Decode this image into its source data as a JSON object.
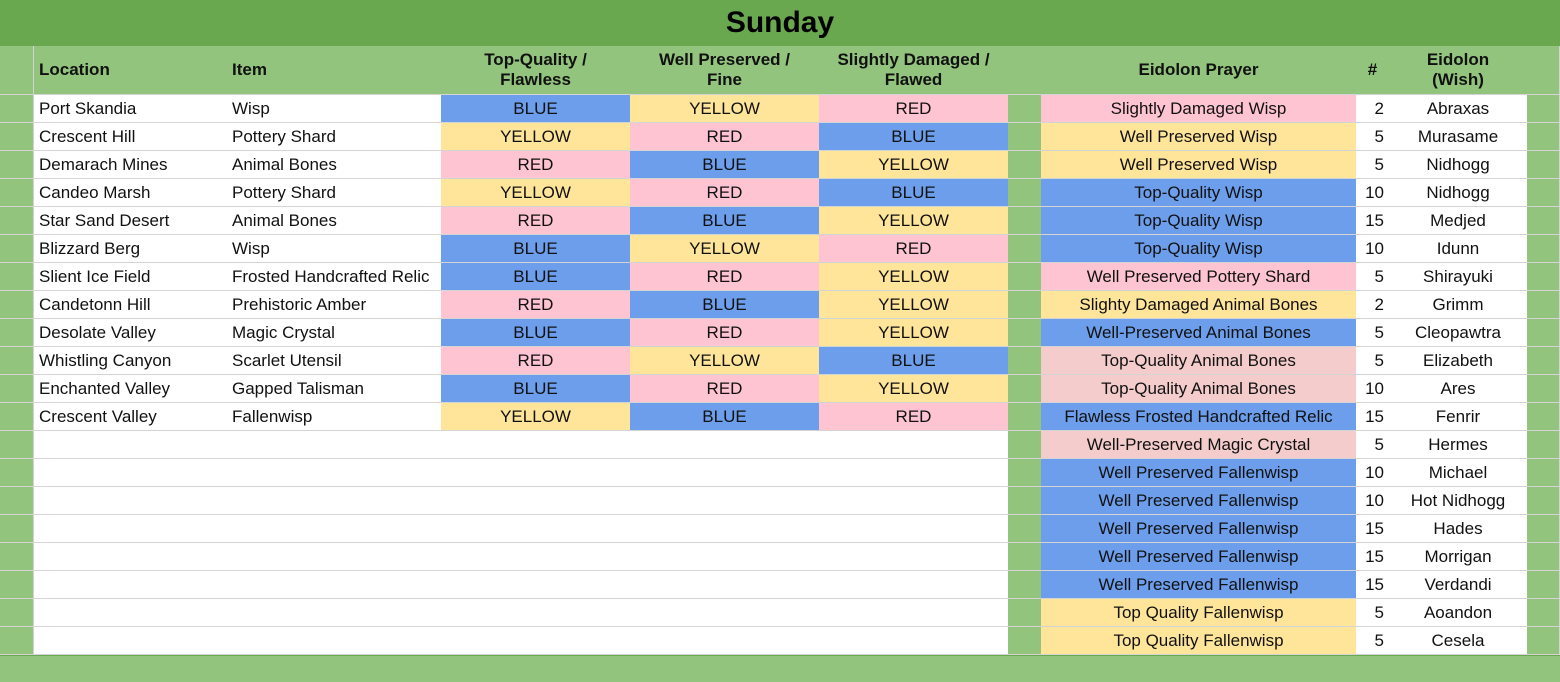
{
  "title": "Sunday",
  "colors": {
    "blue": "#6d9eeb",
    "yellow": "#ffe599",
    "red_pink": "#ffc4d1",
    "light_pink": "#f4cccc",
    "header_green": "#93c47d",
    "title_green": "#6aa84f"
  },
  "headers": {
    "location": "Location",
    "item": "Item",
    "top_quality": [
      "Top-Quality /",
      "Flawless"
    ],
    "well_preserved": [
      "Well Preserved /",
      "Fine"
    ],
    "slightly_damaged": [
      "Slightly Damaged /",
      "Flawed"
    ],
    "eidolon_prayer": "Eidolon Prayer",
    "count": "#",
    "eidolon_wish": [
      "Eidolon",
      "(Wish)"
    ]
  },
  "left_rows": [
    {
      "location": "Port Skandia",
      "item": "Wisp",
      "top": "BLUE",
      "well": "YELLOW",
      "slight": "RED"
    },
    {
      "location": "Crescent Hill",
      "item": "Pottery Shard",
      "top": "YELLOW",
      "well": "RED",
      "slight": "BLUE"
    },
    {
      "location": "Demarach Mines",
      "item": "Animal Bones",
      "top": "RED",
      "well": "BLUE",
      "slight": "YELLOW"
    },
    {
      "location": "Candeo Marsh",
      "item": "Pottery Shard",
      "top": "YELLOW",
      "well": "RED",
      "slight": "BLUE"
    },
    {
      "location": "Star Sand Desert",
      "item": "Animal Bones",
      "top": "RED",
      "well": "BLUE",
      "slight": "YELLOW"
    },
    {
      "location": "Blizzard Berg",
      "item": "Wisp",
      "top": "BLUE",
      "well": "YELLOW",
      "slight": "RED"
    },
    {
      "location": "Slient Ice Field",
      "item": "Frosted Handcrafted Relic",
      "top": "BLUE",
      "well": "RED",
      "slight": "YELLOW"
    },
    {
      "location": "Candetonn Hill",
      "item": "Prehistoric Amber",
      "top": "RED",
      "well": "BLUE",
      "slight": "YELLOW"
    },
    {
      "location": "Desolate Valley",
      "item": "Magic Crystal",
      "top": "BLUE",
      "well": "RED",
      "slight": "YELLOW"
    },
    {
      "location": "Whistling Canyon",
      "item": "Scarlet Utensil",
      "top": "RED",
      "well": "YELLOW",
      "slight": "BLUE"
    },
    {
      "location": "Enchanted Valley",
      "item": "Gapped Talisman",
      "top": "BLUE",
      "well": "RED",
      "slight": "YELLOW"
    },
    {
      "location": "Crescent Valley",
      "item": "Fallenwisp",
      "top": "YELLOW",
      "well": "BLUE",
      "slight": "RED"
    }
  ],
  "right_rows": [
    {
      "prayer": "Slightly Damaged Wisp",
      "color": "pink",
      "count": "2",
      "wish": "Abraxas"
    },
    {
      "prayer": "Well Preserved Wisp",
      "color": "yellow",
      "count": "5",
      "wish": "Murasame"
    },
    {
      "prayer": "Well Preserved Wisp",
      "color": "yellow",
      "count": "5",
      "wish": "Nidhogg"
    },
    {
      "prayer": "Top-Quality Wisp",
      "color": "blue",
      "count": "10",
      "wish": "Nidhogg"
    },
    {
      "prayer": "Top-Quality Wisp",
      "color": "blue",
      "count": "15",
      "wish": "Medjed"
    },
    {
      "prayer": "Top-Quality Wisp",
      "color": "blue",
      "count": "10",
      "wish": "Idunn"
    },
    {
      "prayer": "Well Preserved Pottery Shard",
      "color": "pink",
      "count": "5",
      "wish": "Shirayuki"
    },
    {
      "prayer": "Slighty Damaged Animal Bones",
      "color": "yellow",
      "count": "2",
      "wish": "Grimm"
    },
    {
      "prayer": "Well-Preserved Animal Bones",
      "color": "blue",
      "count": "5",
      "wish": "Cleopawtra"
    },
    {
      "prayer": "Top-Quality Animal Bones",
      "color": "lpink",
      "count": "5",
      "wish": "Elizabeth"
    },
    {
      "prayer": "Top-Quality Animal Bones",
      "color": "lpink",
      "count": "10",
      "wish": "Ares"
    },
    {
      "prayer": "Flawless Frosted Handcrafted Relic",
      "color": "blue",
      "count": "15",
      "wish": "Fenrir"
    },
    {
      "prayer": "Well-Preserved Magic Crystal",
      "color": "lpink",
      "count": "5",
      "wish": "Hermes"
    },
    {
      "prayer": "Well Preserved Fallenwisp",
      "color": "blue",
      "count": "10",
      "wish": "Michael"
    },
    {
      "prayer": "Well Preserved Fallenwisp",
      "color": "blue",
      "count": "10",
      "wish": "Hot Nidhogg"
    },
    {
      "prayer": "Well Preserved Fallenwisp",
      "color": "blue",
      "count": "15",
      "wish": "Hades"
    },
    {
      "prayer": "Well Preserved Fallenwisp",
      "color": "blue",
      "count": "15",
      "wish": "Morrigan"
    },
    {
      "prayer": "Well Preserved Fallenwisp",
      "color": "blue",
      "count": "15",
      "wish": "Verdandi"
    },
    {
      "prayer": "Top Quality Fallenwisp",
      "color": "yellow",
      "count": "5",
      "wish": "Aoandon"
    },
    {
      "prayer": "Top Quality Fallenwisp",
      "color": "yellow",
      "count": "5",
      "wish": "Cesela"
    }
  ]
}
